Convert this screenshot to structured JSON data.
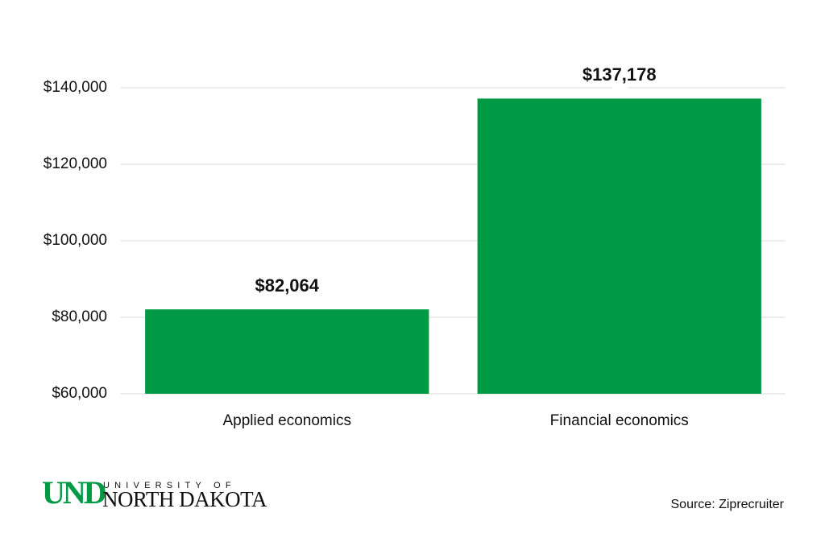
{
  "chart_data": {
    "type": "bar",
    "categories": [
      "Applied economics",
      "Financial economics"
    ],
    "values": [
      82064,
      137178
    ],
    "value_labels": [
      "$82,064",
      "$137,178"
    ],
    "color": "#009a44",
    "ylim": [
      60000,
      140000
    ],
    "yticks": [
      {
        "value": 60000,
        "label": "$60,000"
      },
      {
        "value": 80000,
        "label": "$80,000"
      },
      {
        "value": 100000,
        "label": "$100,000"
      },
      {
        "value": 120000,
        "label": "$120,000"
      },
      {
        "value": 140000,
        "label": "$140,000"
      }
    ],
    "grid": true,
    "source": "Source: Ziprecruiter"
  },
  "logo": {
    "mark": "UND",
    "top": "UNIVERSITY OF",
    "bottom": "NORTH DAKOTA"
  }
}
